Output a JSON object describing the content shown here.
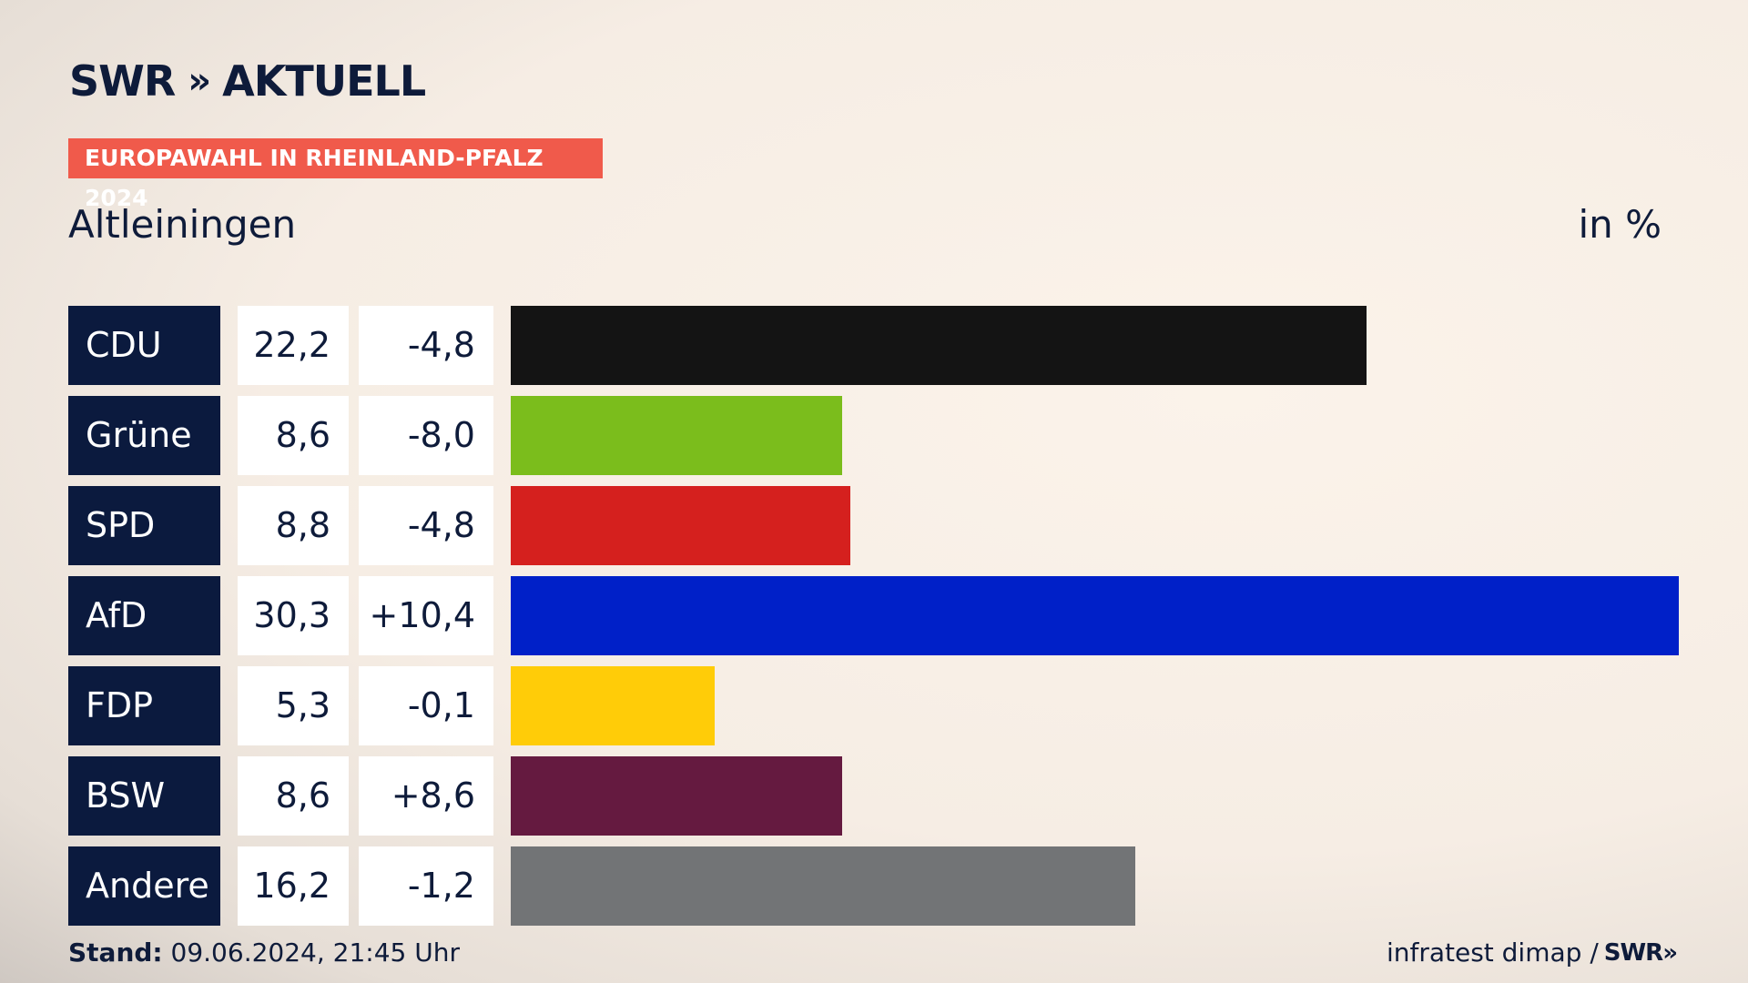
{
  "header": {
    "logo_text": "SWR",
    "logo_chevrons": "»",
    "logo_suffix": "AKTUELL",
    "tag": "EUROPAWAHL IN RHEINLAND-PFALZ 2024",
    "place": "Altleiningen",
    "unit": "in %"
  },
  "chart_data": {
    "type": "bar",
    "orientation": "horizontal",
    "categories": [
      "CDU",
      "Grüne",
      "SPD",
      "AfD",
      "FDP",
      "BSW",
      "Andere"
    ],
    "values": [
      22.2,
      8.6,
      8.8,
      30.3,
      5.3,
      8.6,
      16.2
    ],
    "value_labels": [
      "22,2",
      "8,6",
      "8,8",
      "30,3",
      "5,3",
      "8,6",
      "16,2"
    ],
    "diff_labels": [
      "-4,8",
      "-8,0",
      "-4,8",
      "+10,4",
      "-0,1",
      "+8,6",
      "-1,2"
    ],
    "colors": [
      "#141414",
      "#7bbd1c",
      "#d5201e",
      "#0020c8",
      "#ffcc08",
      "#651a40",
      "#727476"
    ],
    "xlim": [
      0,
      30.3
    ]
  },
  "footer": {
    "stand_label": "Stand:",
    "stand_value": "09.06.2024, 21:45 Uhr",
    "source": "infratest dimap /",
    "source_logo": "SWR»"
  }
}
